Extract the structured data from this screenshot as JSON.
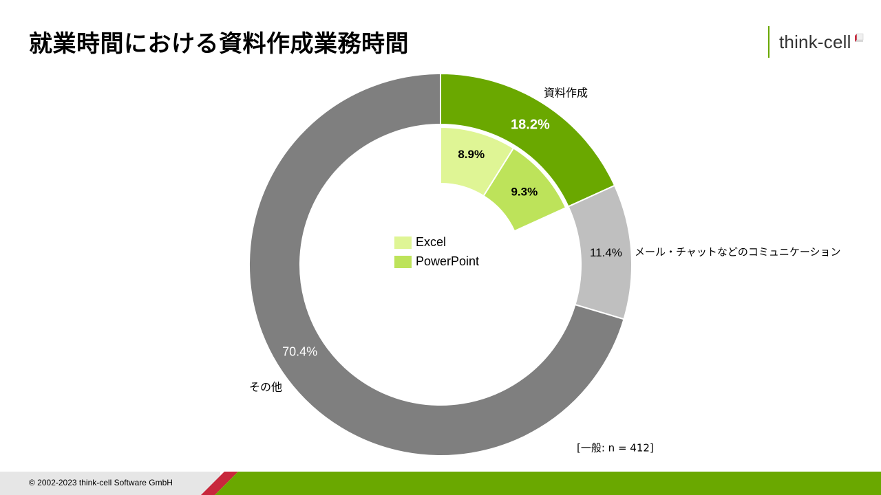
{
  "title": "就業時間における資料作成業務時間",
  "logo": {
    "text": "think-cell"
  },
  "footer": {
    "copyright": "© 2002-2023  think-cell Software  GmbH"
  },
  "colors": {
    "brand_green": "#6aa800",
    "accent_red": "#c8283c",
    "excel": "#dff595",
    "powerpoint": "#bde35a",
    "communication": "#bfbfbf",
    "other": "#7f7f7f"
  },
  "chart_data": {
    "type": "pie",
    "style": "donut",
    "note": "[一般: n = 412]",
    "outer_ring": [
      {
        "label": "資料作成",
        "value": 18.2,
        "value_label": "18.2%",
        "color": "#6aa800"
      },
      {
        "label": "メール・チャットなどのコミュニケーション",
        "value": 11.4,
        "value_label": "11.4%",
        "color": "#bfbfbf"
      },
      {
        "label": "その他",
        "value": 70.4,
        "value_label": "70.4%",
        "color": "#7f7f7f"
      }
    ],
    "inner_breakdown": {
      "parent": "資料作成",
      "slices": [
        {
          "label": "Excel",
          "value": 8.9,
          "value_label": "8.9%",
          "color": "#dff595"
        },
        {
          "label": "PowerPoint",
          "value": 9.3,
          "value_label": "9.3%",
          "color": "#bde35a"
        }
      ]
    },
    "legend": [
      {
        "label": "Excel",
        "color": "#dff595"
      },
      {
        "label": "PowerPoint",
        "color": "#bde35a"
      }
    ],
    "legend_position": "center"
  }
}
